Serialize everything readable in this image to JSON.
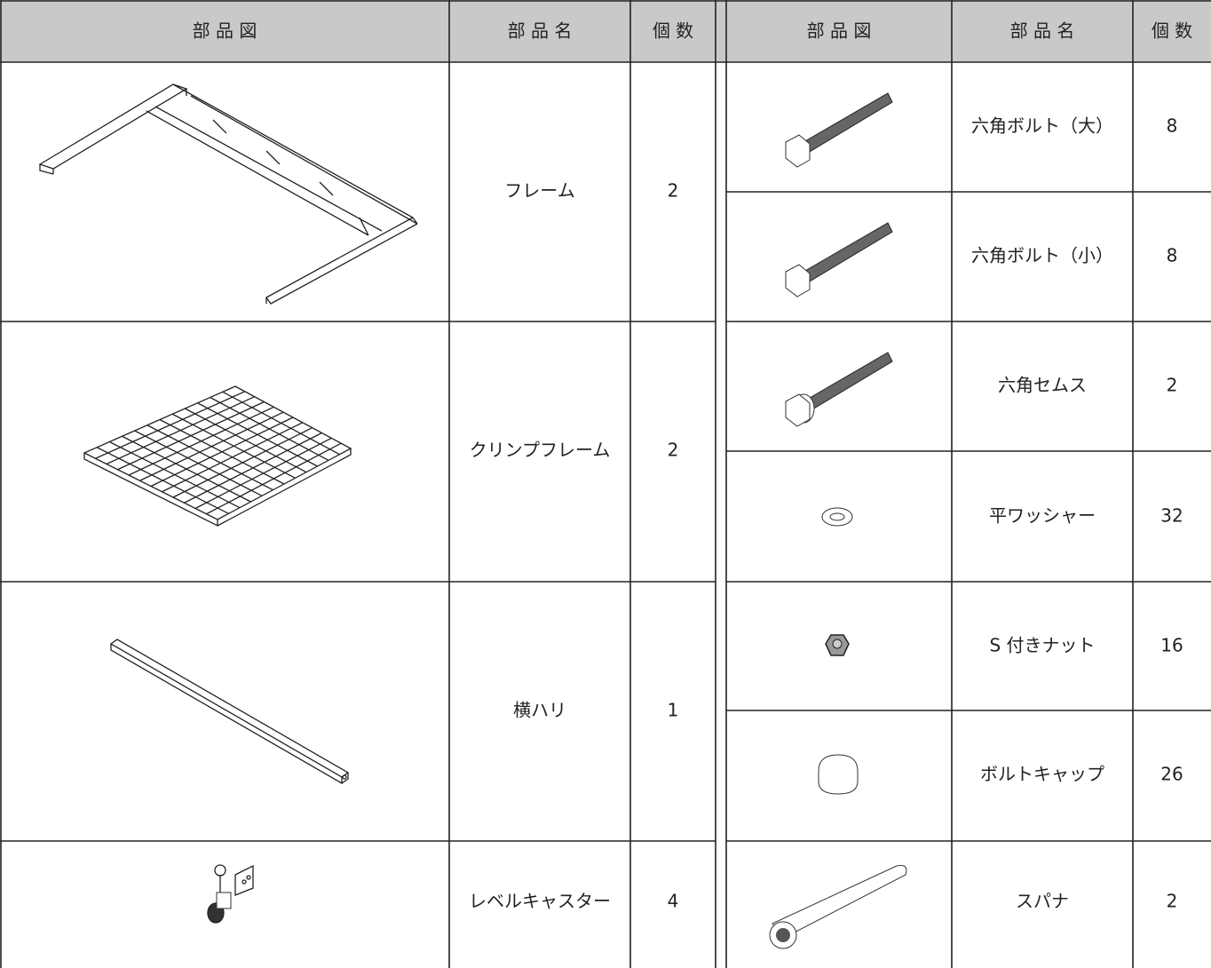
{
  "header": {
    "left": [
      "部 品 図",
      "部 品 名",
      "個 数"
    ],
    "right": [
      "部 品 図",
      "部 品 名",
      "個 数"
    ]
  },
  "left_rows": [
    {
      "name": "フレーム",
      "count": 2
    },
    {
      "name": "クリンプフレーム",
      "count": 2
    },
    {
      "name": "横ハリ",
      "count": 1
    },
    {
      "name": "レベルキャスター",
      "count": 4
    }
  ],
  "right_rows": [
    {
      "name": "六角ボルト（大）",
      "count": 8
    },
    {
      "name": "六角ボルト（小）",
      "count": 8
    },
    {
      "name": "六角セムス",
      "count": 2
    },
    {
      "name": "平ワッシャー",
      "count": 32
    },
    {
      "name": "S 付きナット",
      "count": 16
    },
    {
      "name": "ボルトキャップ",
      "count": 26
    },
    {
      "name": "スパナ",
      "count": 2
    }
  ]
}
